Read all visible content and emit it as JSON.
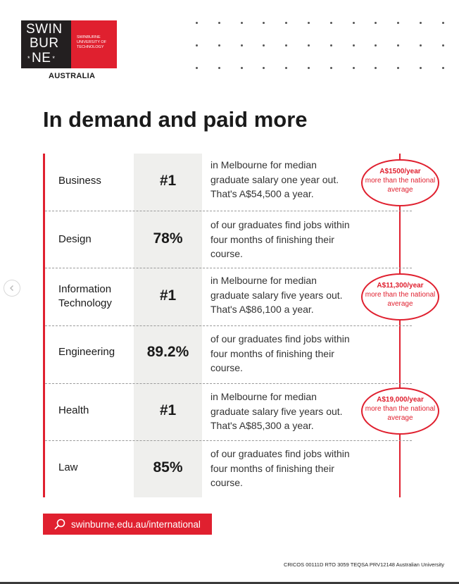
{
  "brand": {
    "logo_lines": [
      "SWIN",
      "BUR",
      "NE"
    ],
    "logo_star": "*",
    "university_name": "SWINBURNE UNIVERSITY OF TECHNOLOGY",
    "country": "AUSTRALIA",
    "colors": {
      "red": "#e0202f",
      "dark": "#231f20",
      "metric_bg": "#efefed"
    }
  },
  "headline": "In demand and paid more",
  "rows": [
    {
      "field": "Business",
      "metric": "#1",
      "description": "in Melbourne for median graduate salary one year out. That's A$54,500 a year.",
      "bubble": {
        "amount": "A$1500/year",
        "text": "more than the national average"
      }
    },
    {
      "field": "Design",
      "metric": "78%",
      "description": "of our graduates find jobs within four months of finishing their course.",
      "bubble": null
    },
    {
      "field": "Information Technology",
      "metric": "#1",
      "description": "in Melbourne for median graduate salary five years out. That's A$86,100 a year.",
      "bubble": {
        "amount": "A$11,300/year",
        "text": "more than the national average"
      }
    },
    {
      "field": "Engineering",
      "metric": "89.2%",
      "description": "of our graduates find jobs within four months of finishing their course.",
      "bubble": null
    },
    {
      "field": "Health",
      "metric": "#1",
      "description": "in Melbourne for median graduate salary five years out. That's A$85,300 a year.",
      "bubble": {
        "amount": "A$19,000/year",
        "text": "more than the national average"
      }
    },
    {
      "field": "Law",
      "metric": "85%",
      "description": "of our graduates find jobs within four months of finishing their course.",
      "bubble": null
    }
  ],
  "cta": {
    "label": "swinburne.edu.au/international",
    "icon": "search-icon"
  },
  "footer": "CRICOS 00111D RTO 3059 TEQSA PRV12148 Australian University",
  "carousel": {
    "prev_icon": "chevron-left-icon"
  }
}
